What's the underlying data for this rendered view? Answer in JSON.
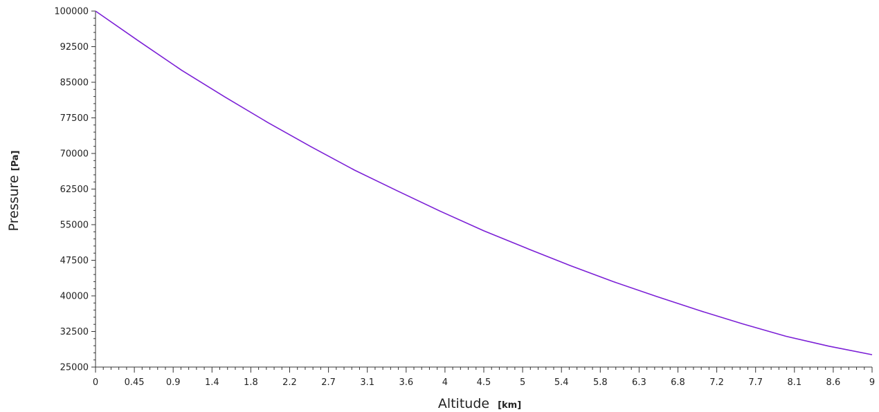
{
  "chart_data": {
    "type": "line",
    "title": "",
    "xlabel": "Altitude",
    "xunit": "[km]",
    "ylabel": "Pressure",
    "yunit": "[Pa]",
    "xlim": [
      0,
      9
    ],
    "ylim": [
      25000,
      100000
    ],
    "x_ticks": [
      "0",
      "0.45",
      "0.9",
      "1.4",
      "1.8",
      "2.2",
      "2.7",
      "3.1",
      "3.6",
      "4",
      "4.5",
      "5",
      "5.4",
      "5.8",
      "6.3",
      "6.8",
      "7.2",
      "7.7",
      "8.1",
      "8.6",
      "9"
    ],
    "y_ticks": [
      "25000",
      "32500",
      "40000",
      "47500",
      "55000",
      "62500",
      "70000",
      "77500",
      "85000",
      "92500",
      "100000"
    ],
    "grid": false,
    "legend": "none",
    "line_color": "#7b1fd6",
    "series": [
      {
        "x": [
          0,
          0.5,
          1,
          1.5,
          2,
          2.5,
          3,
          3.5,
          4,
          4.5,
          5,
          5.5,
          6,
          6.5,
          7,
          7.5,
          8,
          8.5,
          9
        ],
        "values": [
          100000,
          93700,
          87500,
          81900,
          76500,
          71400,
          66500,
          62100,
          57800,
          53700,
          50000,
          46400,
          43000,
          39900,
          36900,
          34100,
          31500,
          29400,
          27600
        ]
      }
    ]
  }
}
